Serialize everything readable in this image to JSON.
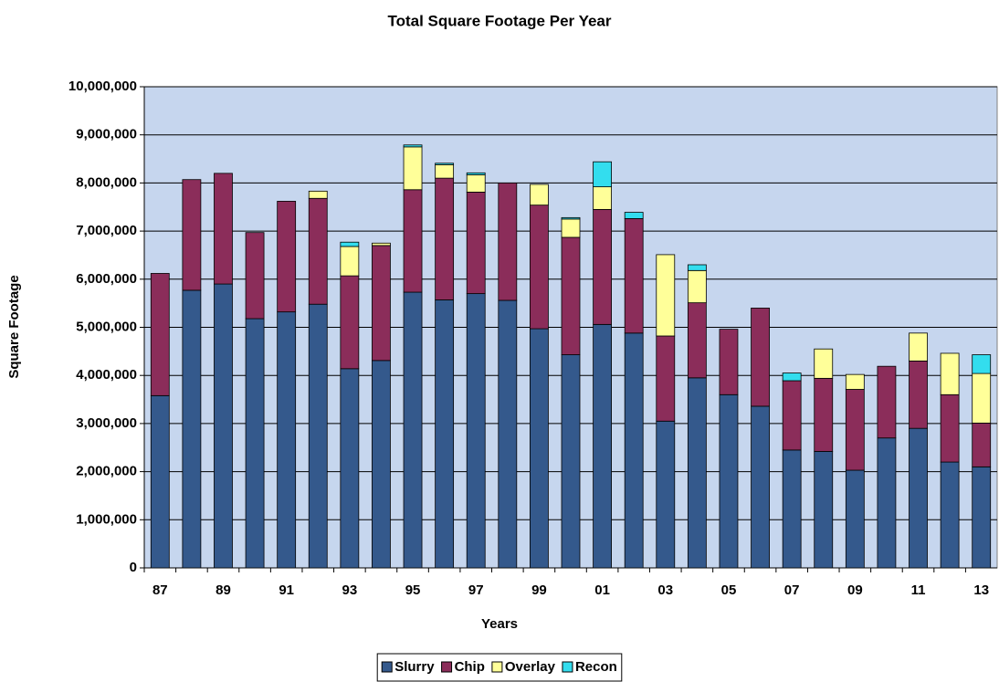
{
  "chart_data": {
    "type": "stacked_bar",
    "title": "Total Square Footage Per Year",
    "x_label": "Years",
    "y_label": "Square Footage",
    "categories": [
      "87",
      null,
      "89",
      null,
      "91",
      null,
      "93",
      null,
      "95",
      null,
      "97",
      null,
      "99",
      null,
      "01",
      null,
      "03",
      null,
      "05",
      null,
      "07",
      null,
      "09",
      null,
      "11",
      null,
      "13"
    ],
    "series": [
      {
        "name": "Slurry",
        "color": "#34598c",
        "values": [
          3580000,
          5770000,
          5900000,
          5180000,
          5320000,
          5480000,
          4140000,
          4310000,
          5730000,
          5570000,
          5700000,
          5560000,
          4970000,
          4430000,
          5060000,
          4880000,
          3050000,
          3950000,
          3600000,
          3360000,
          2450000,
          2420000,
          2030000,
          2700000,
          2900000,
          2200000,
          2100000
        ]
      },
      {
        "name": "Chip",
        "color": "#8b2d5a",
        "values": [
          2540000,
          2300000,
          2300000,
          1790000,
          2300000,
          2200000,
          1930000,
          2390000,
          2130000,
          2530000,
          2110000,
          2440000,
          2570000,
          2440000,
          2390000,
          2380000,
          1770000,
          1560000,
          1360000,
          2040000,
          1440000,
          1520000,
          1680000,
          1490000,
          1400000,
          1400000,
          910000
        ]
      },
      {
        "name": "Overlay",
        "color": "#ffff99",
        "values": [
          0,
          0,
          0,
          0,
          0,
          150000,
          610000,
          50000,
          890000,
          280000,
          360000,
          0,
          430000,
          380000,
          470000,
          0,
          1690000,
          670000,
          0,
          0,
          0,
          610000,
          310000,
          0,
          580000,
          860000,
          1030000
        ]
      },
      {
        "name": "Recon",
        "color": "#33ddee",
        "values": [
          0,
          0,
          0,
          0,
          0,
          0,
          90000,
          0,
          40000,
          30000,
          40000,
          0,
          0,
          30000,
          520000,
          130000,
          0,
          120000,
          0,
          0,
          160000,
          0,
          0,
          0,
          0,
          0,
          390000
        ]
      }
    ],
    "ylim": [
      0,
      10000000
    ],
    "yticks": [
      0,
      {
        "value": 1000000,
        "label": "1,000,000"
      },
      {
        "value": 2000000,
        "label": "2,000,000"
      },
      {
        "value": 3000000,
        "label": "3,000,000"
      },
      {
        "value": 4000000,
        "label": "4,000,000"
      },
      {
        "value": 5000000,
        "label": "5,000,000"
      },
      {
        "value": 6000000,
        "label": "6,000,000"
      },
      {
        "value": 7000000,
        "label": "7,000,000"
      },
      {
        "value": 8000000,
        "label": "8,000,000"
      },
      {
        "value": 9000000,
        "label": "9,000,000"
      },
      {
        "value": 10000000,
        "label": "10,000,000"
      }
    ],
    "grid": true,
    "legend": "bottom"
  }
}
